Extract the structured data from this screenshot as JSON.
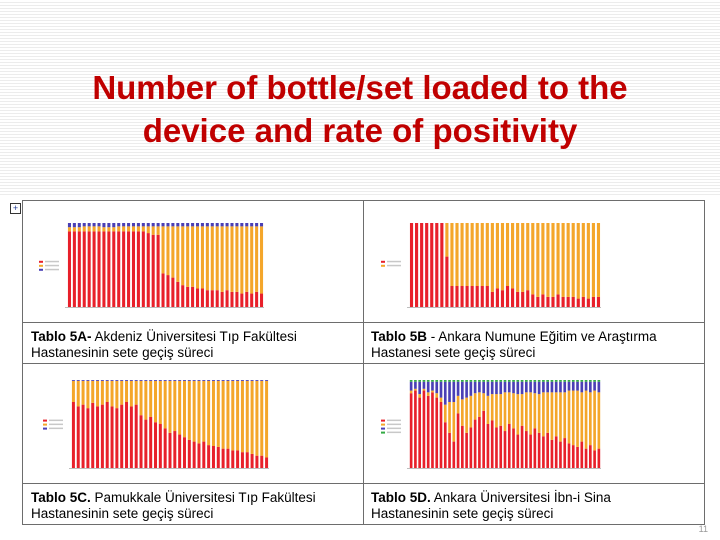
{
  "slide": {
    "title_line1": "Number of bottle/set loaded to the",
    "title_line2": "device and rate of positivity",
    "page_number": "11"
  },
  "colors": {
    "title": "#c00000",
    "positive": "#e8202a",
    "set": "#f4a62a",
    "other": "#4a3fb5",
    "green": "#33aa44"
  },
  "panels": [
    {
      "caption_bold": "Tablo 5A-",
      "caption_rest": " Akdeniz Üniversitesi Tıp Fakültesi",
      "caption_line2": "Hastanesinin sete geçiş süreci"
    },
    {
      "caption_bold": "Tablo 5B",
      "caption_rest": " - Ankara Numune Eğitim ve Araştırma",
      "caption_line2": "Hastanesi sete geçiş süreci"
    },
    {
      "caption_bold": "Tablo 5C.",
      "caption_rest": " Pamukkale Üniversitesi Tıp Fakültesi",
      "caption_line2": "Hastanesinin sete geçiş süreci"
    },
    {
      "caption_bold": "Tablo 5D.",
      "caption_rest": " Ankara Üniversitesi İbn-i Sina",
      "caption_line2": "Hastanesinin sete geçiş süreci"
    }
  ],
  "chart_data": [
    {
      "type": "bar",
      "stacked": true,
      "ylim": [
        0,
        100
      ],
      "series": [
        {
          "color_key": "positive",
          "values": [
            90,
            90,
            90,
            90,
            90,
            90,
            90,
            90,
            90,
            90,
            90,
            90,
            90,
            90,
            90,
            90,
            88,
            86,
            86,
            40,
            38,
            35,
            30,
            26,
            24,
            24,
            22,
            22,
            20,
            20,
            20,
            18,
            20,
            18,
            18,
            16,
            18,
            16,
            18,
            16
          ]
        },
        {
          "color_key": "set",
          "values": [
            5,
            5,
            5,
            6,
            6,
            6,
            6,
            5,
            5,
            5,
            6,
            6,
            6,
            6,
            6,
            6,
            8,
            10,
            10,
            56,
            58,
            61,
            66,
            70,
            72,
            72,
            74,
            74,
            76,
            76,
            76,
            78,
            76,
            78,
            78,
            80,
            78,
            80,
            78,
            80
          ]
        },
        {
          "color_key": "other",
          "values": [
            5,
            5,
            5,
            4,
            4,
            4,
            4,
            5,
            5,
            5,
            4,
            4,
            4,
            4,
            4,
            4,
            4,
            4,
            4,
            4,
            4,
            4,
            4,
            4,
            4,
            4,
            4,
            4,
            4,
            4,
            4,
            4,
            4,
            4,
            4,
            4,
            4,
            4,
            4,
            4
          ]
        }
      ]
    },
    {
      "type": "bar",
      "stacked": true,
      "ylim": [
        0,
        100
      ],
      "series": [
        {
          "color_key": "positive",
          "values": [
            100,
            100,
            100,
            100,
            100,
            100,
            100,
            60,
            25,
            25,
            25,
            25,
            25,
            25,
            25,
            25,
            18,
            22,
            20,
            25,
            22,
            18,
            18,
            20,
            15,
            12,
            15,
            12,
            12,
            15,
            12,
            12,
            12,
            10,
            12,
            10,
            12,
            12
          ]
        },
        {
          "color_key": "set",
          "values": [
            0,
            0,
            0,
            0,
            0,
            0,
            0,
            40,
            75,
            75,
            75,
            75,
            75,
            75,
            75,
            75,
            82,
            78,
            80,
            75,
            78,
            82,
            82,
            80,
            85,
            88,
            85,
            88,
            88,
            85,
            88,
            88,
            88,
            90,
            88,
            90,
            88,
            88
          ]
        }
      ]
    },
    {
      "type": "bar",
      "stacked": true,
      "ylim": [
        0,
        100
      ],
      "series": [
        {
          "color_key": "positive",
          "values": [
            75,
            70,
            72,
            68,
            74,
            70,
            72,
            75,
            70,
            68,
            72,
            75,
            70,
            72,
            60,
            55,
            58,
            52,
            50,
            45,
            40,
            42,
            38,
            35,
            32,
            30,
            28,
            30,
            26,
            25,
            24,
            22,
            22,
            20,
            20,
            18,
            18,
            16,
            14,
            14,
            12
          ]
        },
        {
          "color_key": "set",
          "values": [
            24,
            29,
            27,
            31,
            25,
            29,
            27,
            24,
            29,
            31,
            27,
            24,
            29,
            27,
            39,
            44,
            41,
            47,
            49,
            54,
            59,
            57,
            61,
            64,
            67,
            69,
            71,
            69,
            73,
            74,
            75,
            77,
            77,
            79,
            79,
            81,
            81,
            83,
            85,
            85,
            87
          ]
        },
        {
          "color_key": "other",
          "values": [
            1,
            1,
            1,
            1,
            1,
            1,
            1,
            1,
            1,
            1,
            1,
            1,
            1,
            1,
            1,
            1,
            1,
            1,
            1,
            1,
            1,
            1,
            1,
            1,
            1,
            1,
            1,
            1,
            1,
            1,
            1,
            1,
            1,
            1,
            1,
            1,
            1,
            1,
            1,
            1,
            1
          ]
        }
      ]
    },
    {
      "type": "bar",
      "stacked": true,
      "ylim": [
        0,
        100
      ],
      "series": [
        {
          "color_key": "positive",
          "values": [
            85,
            88,
            80,
            88,
            82,
            86,
            80,
            75,
            52,
            40,
            30,
            62,
            48,
            40,
            46,
            55,
            58,
            65,
            50,
            54,
            46,
            48,
            42,
            50,
            45,
            38,
            48,
            42,
            38,
            45,
            40,
            36,
            40,
            32,
            36,
            30,
            34,
            28,
            26,
            24,
            30,
            22,
            26,
            20,
            22
          ]
        },
        {
          "color_key": "set",
          "values": [
            3,
            2,
            4,
            2,
            4,
            2,
            5,
            5,
            20,
            35,
            45,
            20,
            30,
            40,
            36,
            30,
            28,
            20,
            32,
            30,
            38,
            36,
            44,
            36,
            40,
            46,
            36,
            44,
            48,
            40,
            44,
            50,
            46,
            54,
            50,
            56,
            52,
            60,
            62,
            64,
            56,
            66,
            60,
            68,
            64
          ]
        },
        {
          "color_key": "other",
          "values": [
            10,
            8,
            14,
            8,
            12,
            10,
            13,
            18,
            26,
            23,
            23,
            16,
            20,
            18,
            16,
            13,
            12,
            13,
            16,
            14,
            14,
            14,
            12,
            12,
            13,
            14,
            14,
            12,
            12,
            13,
            14,
            12,
            12,
            12,
            12,
            12,
            12,
            10,
            10,
            10,
            12,
            10,
            12,
            10,
            12
          ]
        },
        {
          "color_key": "green",
          "values": [
            2,
            2,
            2,
            2,
            2,
            2,
            2,
            2,
            2,
            2,
            2,
            2,
            2,
            2,
            2,
            2,
            2,
            2,
            2,
            2,
            2,
            2,
            2,
            2,
            2,
            2,
            2,
            2,
            2,
            2,
            2,
            2,
            2,
            2,
            2,
            2,
            2,
            2,
            2,
            2,
            2,
            2,
            2,
            2,
            2
          ]
        }
      ]
    }
  ]
}
